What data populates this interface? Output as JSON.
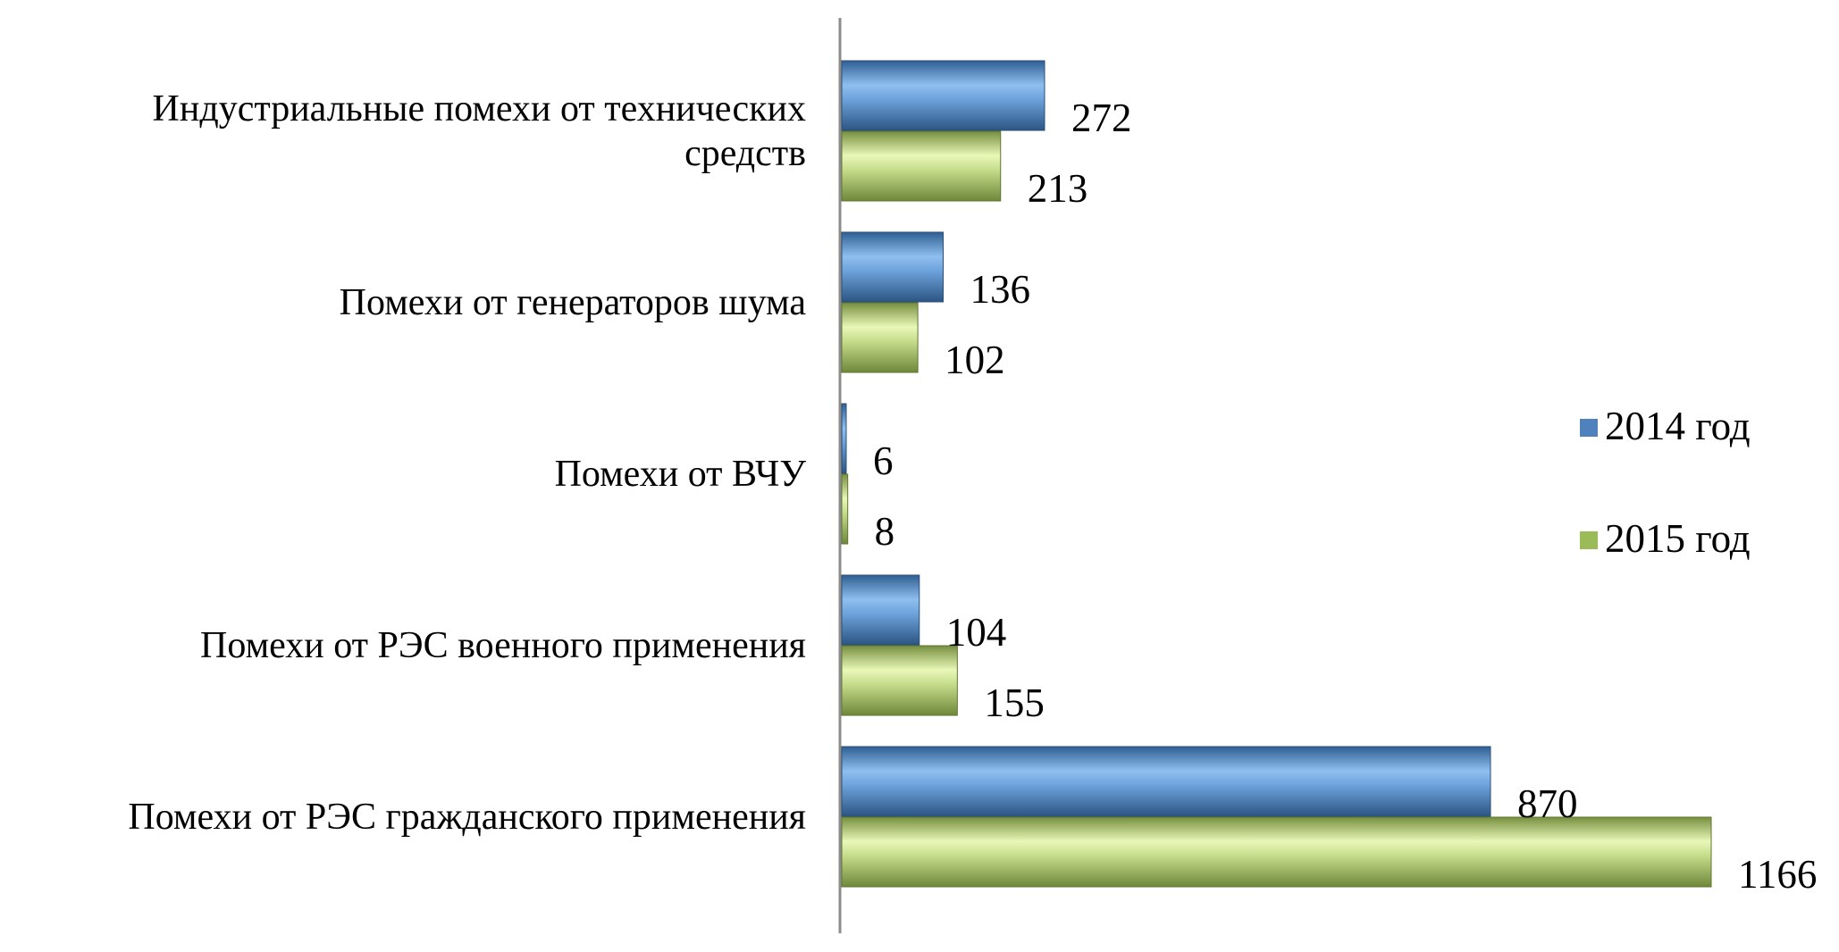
{
  "chart_data": {
    "type": "bar",
    "orientation": "horizontal",
    "categories": [
      [
        "Индустриальные помехи от технических",
        "средств"
      ],
      [
        "Помехи от генераторов шума"
      ],
      [
        "Помехи от  ВЧУ"
      ],
      [
        "Помехи от РЭС военного применения"
      ],
      [
        "Помехи от РЭС гражданского применения"
      ]
    ],
    "series": [
      {
        "name": "2014 год",
        "color": "#4f81bd",
        "values": [
          272,
          136,
          6,
          104,
          870
        ]
      },
      {
        "name": "2015 год",
        "color": "#9bbb59",
        "values": [
          213,
          102,
          8,
          155,
          1166
        ]
      }
    ],
    "xlim": [
      0,
      1200
    ],
    "grid": false,
    "legend_position": "right"
  }
}
